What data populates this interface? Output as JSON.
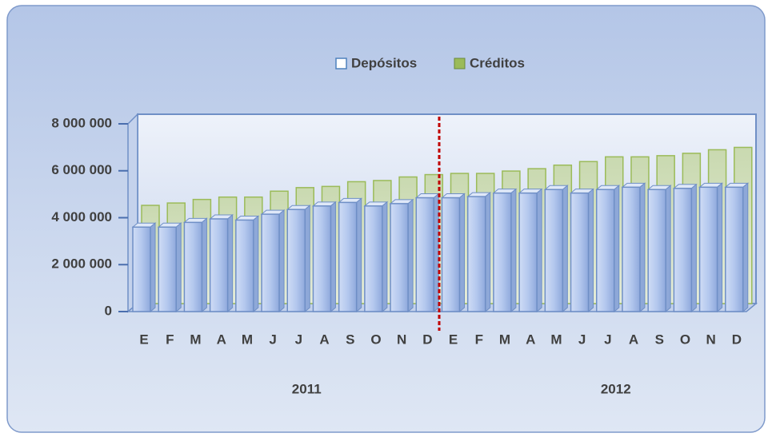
{
  "chart_data": {
    "type": "bar3d",
    "categories": [
      "E",
      "F",
      "M",
      "A",
      "M",
      "J",
      "J",
      "A",
      "S",
      "O",
      "N",
      "D",
      "E",
      "F",
      "M",
      "A",
      "M",
      "J",
      "J",
      "A",
      "S",
      "O",
      "N",
      "D"
    ],
    "groups": [
      "2011",
      "2012"
    ],
    "series": [
      {
        "name": "Depósitos",
        "color": "#b8cbef",
        "values": [
          3600000,
          3600000,
          3800000,
          3950000,
          3900000,
          4150000,
          4350000,
          4500000,
          4650000,
          4500000,
          4600000,
          4850000,
          4850000,
          4900000,
          5050000,
          5050000,
          5200000,
          5050000,
          5200000,
          5300000,
          5200000,
          5250000,
          5300000,
          5300000
        ]
      },
      {
        "name": "Créditos",
        "color": "#9bbb59",
        "values": [
          4150000,
          4250000,
          4400000,
          4500000,
          4500000,
          4750000,
          4900000,
          4950000,
          5150000,
          5200000,
          5350000,
          5450000,
          5500000,
          5500000,
          5600000,
          5700000,
          5850000,
          6000000,
          6200000,
          6200000,
          6250000,
          6350000,
          6500000,
          6600000
        ]
      }
    ],
    "ylim": [
      0,
      8000000
    ],
    "yticks": [
      0,
      {
        "value": 2000000,
        "label": "2 000 000"
      },
      {
        "value": 4000000,
        "label": "4 000 000"
      },
      {
        "value": 6000000,
        "label": "6 000 000"
      },
      {
        "value": 8000000,
        "label": "8 000 000"
      }
    ]
  }
}
